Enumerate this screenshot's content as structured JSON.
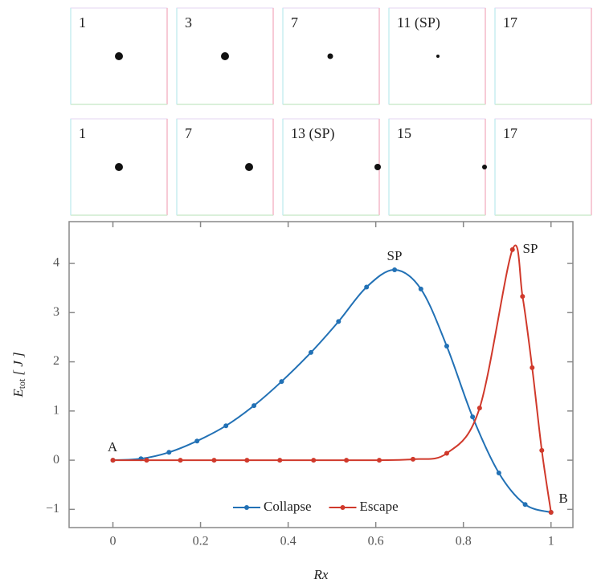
{
  "insets": {
    "rows": [
      [
        "1",
        "3",
        "7",
        "11 (SP)",
        "17"
      ],
      [
        "1",
        "7",
        "13 (SP)",
        "15",
        "17"
      ]
    ]
  },
  "chart_data": {
    "type": "line",
    "xlabel": "Rx",
    "ylabel": "E",
    "ylabel_sub": "tot",
    "ylabel_unit": "[ J ]",
    "annotations": [
      "A",
      "B",
      "SP",
      "SP"
    ],
    "xlim": [
      -0.1,
      1.05
    ],
    "ylim": [
      -1.37,
      4.85
    ],
    "xticks": [
      0,
      0.2,
      0.4,
      0.6,
      0.8,
      1
    ],
    "yticks": [
      {
        "value": -1,
        "label": "−1"
      },
      0,
      1,
      2,
      3,
      4
    ],
    "legend": "lower center",
    "series": [
      {
        "name": "Collapse",
        "color": "#2271b5",
        "x": [
          0,
          0.064,
          0.128,
          0.192,
          0.258,
          0.322,
          0.385,
          0.452,
          0.515,
          0.579,
          0.643,
          0.703,
          0.762,
          0.821,
          0.881,
          0.941,
          1.0
        ],
        "values": [
          0,
          0.03,
          0.16,
          0.39,
          0.7,
          1.11,
          1.6,
          2.19,
          2.82,
          3.52,
          3.87,
          3.48,
          2.32,
          0.88,
          -0.26,
          -0.9,
          -1.06
        ]
      },
      {
        "name": "Escape",
        "color": "#d0392b",
        "x": [
          0,
          0.077,
          0.154,
          0.231,
          0.306,
          0.381,
          0.458,
          0.533,
          0.608,
          0.685,
          0.762,
          0.837,
          0.912,
          0.935,
          0.957,
          0.979,
          1.0
        ],
        "values": [
          0,
          0,
          0,
          0,
          0,
          0,
          0,
          0,
          0,
          0.02,
          0.14,
          1.06,
          4.28,
          3.33,
          1.88,
          0.2,
          -1.06
        ]
      }
    ]
  }
}
